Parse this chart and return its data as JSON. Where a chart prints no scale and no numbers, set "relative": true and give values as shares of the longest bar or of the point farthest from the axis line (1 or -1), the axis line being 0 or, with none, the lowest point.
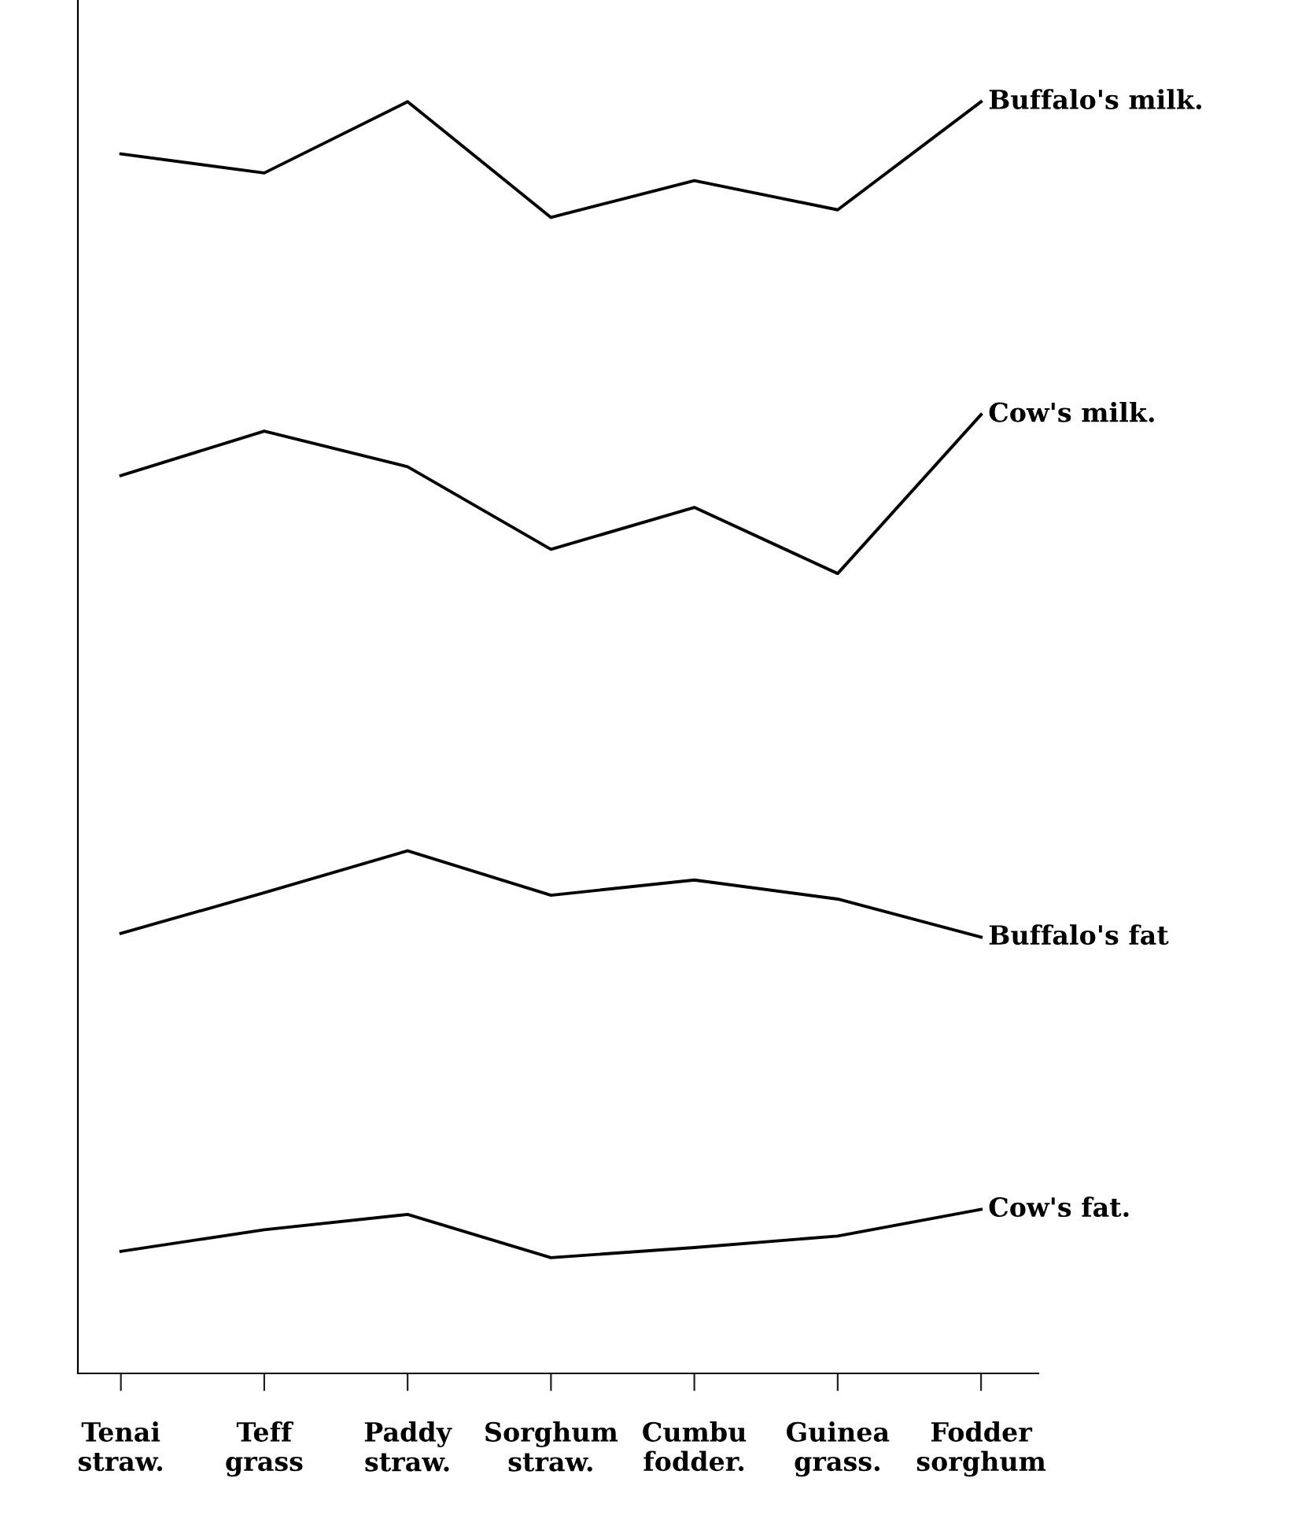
{
  "chart_data": {
    "type": "line",
    "relative": true,
    "legend": false,
    "grid": false,
    "marker": "none",
    "line_style": "solid",
    "categories": [
      "Tenai\nstraw.",
      "Teff\ngrass",
      "Paddy\nstraw.",
      "Sorghum\nstraw.",
      "Cumbu\nfodder.",
      "Guinea\ngrass.",
      "Fodder\nsorghum"
    ],
    "series": [
      {
        "name": "Buffalo's milk.",
        "color": "#000000",
        "values": [
          0.959,
          0.944,
          1,
          0.909,
          0.938,
          0.915,
          1
        ]
      },
      {
        "name": "Cow's milk.",
        "color": "#000000",
        "values": [
          0.706,
          0.741,
          0.713,
          0.648,
          0.681,
          0.629,
          0.754
        ]
      },
      {
        "name": "Buffalo's fat",
        "color": "#000000",
        "values": [
          0.346,
          0.378,
          0.411,
          0.376,
          0.388,
          0.373,
          0.343
        ]
      },
      {
        "name": "Cow's fat.",
        "color": "#000000",
        "values": [
          0.096,
          0.113,
          0.125,
          0.091,
          0.099,
          0.108,
          0.129
        ]
      }
    ]
  }
}
